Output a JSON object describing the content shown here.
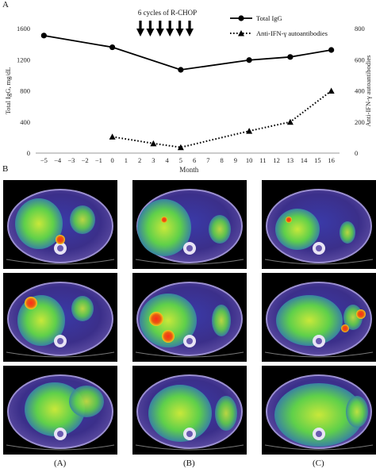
{
  "panel_labels": {
    "a": "A",
    "b": "B"
  },
  "chart_data": {
    "type": "line",
    "x": [
      -5,
      0,
      5,
      10,
      13,
      16
    ],
    "xlabel": "Month",
    "xticks": [
      -5,
      -4,
      -3,
      -2,
      -1,
      0,
      1,
      2,
      3,
      4,
      5,
      6,
      7,
      8,
      9,
      10,
      11,
      12,
      13,
      14,
      15,
      16
    ],
    "ylabel_left": "Total IgG, mg/dL",
    "ylabel_right": "Anti-IFN-γ autoantibodies",
    "ylim_left": [
      0,
      1600
    ],
    "yticks_left": [
      0,
      400,
      800,
      1200,
      1600
    ],
    "ylim_right": [
      0,
      800
    ],
    "yticks_right": [
      0,
      200,
      400,
      600,
      800
    ],
    "series": [
      {
        "name": "Total IgG",
        "axis": "left",
        "style": "solid-circle",
        "x": [
          -5,
          0,
          5,
          10,
          13,
          16
        ],
        "values": [
          1510,
          1360,
          1070,
          1195,
          1235,
          1325
        ]
      },
      {
        "name": "Anti-IFN-γ autoantibodies",
        "axis": "right",
        "style": "dotted-triangle",
        "x": [
          0,
          3,
          5,
          10,
          13,
          16
        ],
        "values": [
          105,
          62,
          37,
          142,
          200,
          400
        ]
      }
    ],
    "annotation": "6 cycles of R-CHOP",
    "arrow_count": 6,
    "legend_position": "top-right"
  },
  "scan_labels": [
    "(A)",
    "(B)",
    "(C)"
  ]
}
